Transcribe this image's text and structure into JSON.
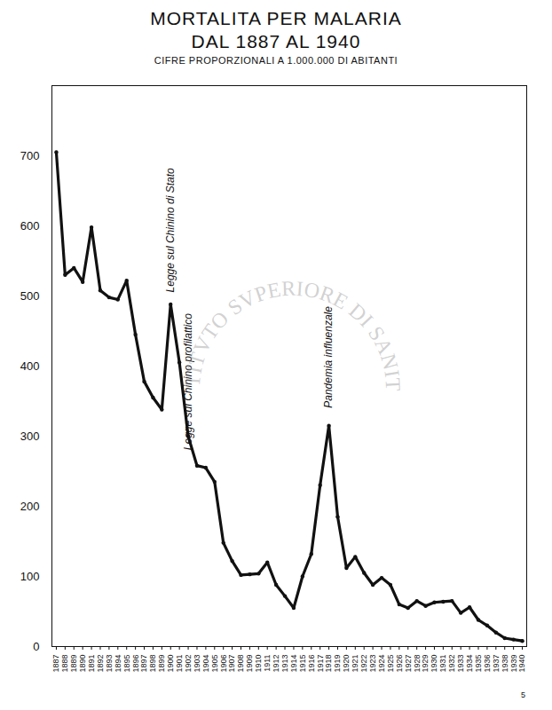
{
  "chart_data": {
    "type": "line",
    "title": "MORTALITA PER MALARIA",
    "title2": "DAL 1887 AL 1940",
    "subtitle": "CIFRE PROPORZIONALI A 1.000.000 DI ABITANTI",
    "watermark": "ISTITVTO SVPERIORE DI SANITÀ",
    "page_number": "5",
    "categories": [
      "1887",
      "1888",
      "1889",
      "1890",
      "1891",
      "1892",
      "1893",
      "1894",
      "1895",
      "1896",
      "1897",
      "1898",
      "1899",
      "1900",
      "1901",
      "1902",
      "1903",
      "1904",
      "1905",
      "1906",
      "1907",
      "1908",
      "1909",
      "1910",
      "1911",
      "1912",
      "1913",
      "1914",
      "1915",
      "1916",
      "1917",
      "1918",
      "1919",
      "1920",
      "1921",
      "1922",
      "1923",
      "1924",
      "1925",
      "1926",
      "1927",
      "1928",
      "1929",
      "1930",
      "1931",
      "1932",
      "1933",
      "1934",
      "1935",
      "1936",
      "1937",
      "1938",
      "1939",
      "1940"
    ],
    "values": [
      705,
      530,
      540,
      520,
      598,
      508,
      498,
      495,
      522,
      445,
      378,
      355,
      338,
      488,
      405,
      300,
      258,
      255,
      235,
      148,
      122,
      102,
      103,
      104,
      120,
      88,
      72,
      55,
      100,
      132,
      230,
      315,
      185,
      112,
      128,
      105,
      88,
      98,
      88,
      60,
      55,
      65,
      58,
      63,
      64,
      65,
      48,
      56,
      38,
      30,
      20,
      12,
      10,
      8
    ],
    "color": "#111111",
    "marker": "circle",
    "ylim": [
      0,
      800
    ],
    "yticks": [
      0,
      100,
      200,
      300,
      400,
      500,
      600,
      700
    ],
    "grid": false,
    "annotations": [
      {
        "x": "1900",
        "y": 495,
        "text": "Legge sul Chinino di Stato"
      },
      {
        "x": "1902",
        "y": 270,
        "text": "Legge sul Chinino profilattico"
      },
      {
        "x": "1918",
        "y": 330,
        "text": "Pandemia influenzale"
      }
    ]
  }
}
